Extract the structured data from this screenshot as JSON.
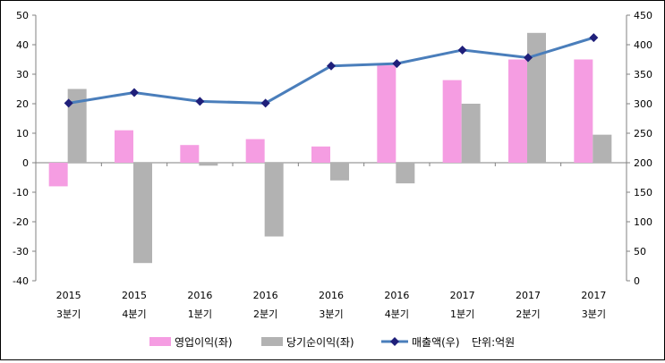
{
  "chart_data": {
    "type": "bar",
    "categories": [
      {
        "year": "2015",
        "quarter": "3분기"
      },
      {
        "year": "2015",
        "quarter": "4분기"
      },
      {
        "year": "2016",
        "quarter": "1분기"
      },
      {
        "year": "2016",
        "quarter": "2분기"
      },
      {
        "year": "2016",
        "quarter": "3분기"
      },
      {
        "year": "2016",
        "quarter": "4분기"
      },
      {
        "year": "2017",
        "quarter": "1분기"
      },
      {
        "year": "2017",
        "quarter": "2분기"
      },
      {
        "year": "2017",
        "quarter": "3분기"
      }
    ],
    "series": [
      {
        "name": "영업이익(좌)",
        "type": "bar",
        "axis": "left",
        "color": "#f59de2",
        "values": [
          -8,
          11,
          6,
          8,
          5.5,
          33,
          28,
          35,
          35
        ]
      },
      {
        "name": "당기순이익(좌)",
        "type": "bar",
        "axis": "left",
        "color": "#b2b2b2",
        "values": [
          25,
          -34,
          -1,
          -25,
          -6,
          -7,
          20,
          44,
          9.5
        ]
      },
      {
        "name": "매출액(우)",
        "type": "line",
        "axis": "right",
        "color": "#4a7ebb",
        "marker_color": "#1f1f7a",
        "values": [
          301,
          319,
          304,
          301,
          364,
          368,
          391,
          378,
          412
        ]
      }
    ],
    "left_axis": {
      "min": -40,
      "max": 50,
      "ticks": [
        -40,
        -30,
        -20,
        -10,
        0,
        10,
        20,
        30,
        40,
        50
      ]
    },
    "right_axis": {
      "min": 0,
      "max": 450,
      "ticks": [
        0,
        50,
        100,
        150,
        200,
        250,
        300,
        350,
        400,
        450
      ]
    },
    "unit_note": "단위:억원",
    "legend_position": "bottom"
  }
}
